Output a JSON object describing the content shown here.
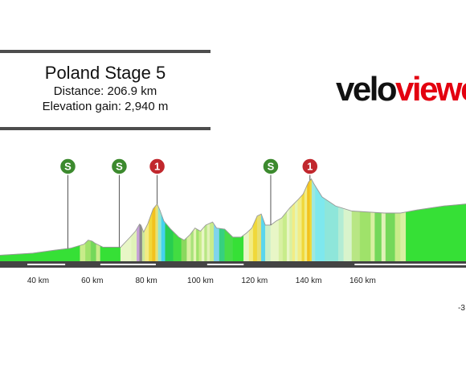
{
  "title": "Poland Stage 5",
  "distance": "Distance: 206.9 km",
  "elevation": "Elevation gain: 2,940 m",
  "brand": {
    "part1": "velo",
    "part2": "viewer"
  },
  "colors": {
    "brand_red": "#e3000f",
    "sprint_green": "#3c8a2e",
    "kom_red": "#c1272d",
    "baseline": "#444444"
  },
  "corner_text": "-3",
  "chart_data": {
    "type": "area",
    "title": "Poland Stage 5",
    "xlabel": "",
    "ylabel": "",
    "x_unit": "km",
    "xlim": [
      25.9,
      198.2
    ],
    "x_ticks": [
      {
        "value": 40,
        "label": "40 km"
      },
      {
        "value": 60,
        "label": "60 km"
      },
      {
        "value": 80,
        "label": "80 km"
      },
      {
        "value": 100,
        "label": "100 km"
      },
      {
        "value": 120,
        "label": "120 km"
      },
      {
        "value": 140,
        "label": "140 km"
      },
      {
        "value": 160,
        "label": "160 km"
      }
    ],
    "profile": [
      [
        25.9,
        6
      ],
      [
        38,
        8
      ],
      [
        46,
        11
      ],
      [
        52,
        13
      ],
      [
        57,
        17
      ],
      [
        58.5,
        21
      ],
      [
        60,
        20
      ],
      [
        61,
        18
      ],
      [
        64,
        14
      ],
      [
        70.5,
        14
      ],
      [
        74,
        24
      ],
      [
        76,
        30
      ],
      [
        77.5,
        37
      ],
      [
        78,
        36
      ],
      [
        79,
        29
      ],
      [
        80.5,
        37
      ],
      [
        82.5,
        52
      ],
      [
        84,
        57
      ],
      [
        85,
        51
      ],
      [
        86.5,
        40
      ],
      [
        89,
        32
      ],
      [
        92,
        24
      ],
      [
        94,
        21
      ],
      [
        96,
        26
      ],
      [
        98,
        33
      ],
      [
        100,
        30
      ],
      [
        102,
        36
      ],
      [
        104.5,
        39
      ],
      [
        106,
        33
      ],
      [
        109,
        32
      ],
      [
        112,
        24
      ],
      [
        115,
        24
      ],
      [
        117,
        28
      ],
      [
        119,
        33
      ],
      [
        121,
        45
      ],
      [
        122.5,
        47
      ],
      [
        124,
        36
      ],
      [
        126,
        36
      ],
      [
        128,
        40
      ],
      [
        130,
        43
      ],
      [
        133,
        53
      ],
      [
        136,
        61
      ],
      [
        138,
        67
      ],
      [
        140,
        79
      ],
      [
        141,
        82
      ],
      [
        142,
        77
      ],
      [
        145,
        64
      ],
      [
        150,
        55
      ],
      [
        156,
        50
      ],
      [
        162,
        49
      ],
      [
        168,
        48
      ],
      [
        174,
        48
      ],
      [
        180,
        51
      ],
      [
        190,
        55
      ],
      [
        198.2,
        57
      ]
    ],
    "segments": [
      {
        "from": 25.9,
        "to": 55.5,
        "color": "#36e036"
      },
      {
        "from": 55.5,
        "to": 57.5,
        "color": "#c8ec8a"
      },
      {
        "from": 57.5,
        "to": 59.5,
        "color": "#9fe26a"
      },
      {
        "from": 59.5,
        "to": 61.5,
        "color": "#74d85a"
      },
      {
        "from": 61.5,
        "to": 63,
        "color": "#c8ec8a"
      },
      {
        "from": 63,
        "to": 70.5,
        "color": "#36e036"
      },
      {
        "from": 70.5,
        "to": 74.5,
        "color": "#e8f6c6"
      },
      {
        "from": 74.5,
        "to": 76.5,
        "color": "#e0f2b8"
      },
      {
        "from": 76.5,
        "to": 77.5,
        "color": "#c6a0d8"
      },
      {
        "from": 77.5,
        "to": 78.5,
        "color": "#8a8a8a"
      },
      {
        "from": 78.5,
        "to": 79.5,
        "color": "#cde89a"
      },
      {
        "from": 79.5,
        "to": 81,
        "color": "#f2ec84"
      },
      {
        "from": 81,
        "to": 82.2,
        "color": "#f0d83a"
      },
      {
        "from": 82.2,
        "to": 83.4,
        "color": "#f3c21e"
      },
      {
        "from": 83.4,
        "to": 84.4,
        "color": "#e8e070"
      },
      {
        "from": 84.4,
        "to": 85.6,
        "color": "#92e6d2"
      },
      {
        "from": 85.6,
        "to": 87,
        "color": "#44d2ee"
      },
      {
        "from": 87,
        "to": 90,
        "color": "#28cd50"
      },
      {
        "from": 90,
        "to": 93,
        "color": "#42dc42"
      },
      {
        "from": 93,
        "to": 95,
        "color": "#8ad85e"
      },
      {
        "from": 95,
        "to": 96.5,
        "color": "#d8f0a2"
      },
      {
        "from": 96.5,
        "to": 97.5,
        "color": "#a8e27a"
      },
      {
        "from": 97.5,
        "to": 98.5,
        "color": "#e4f4b4"
      },
      {
        "from": 98.5,
        "to": 99.5,
        "color": "#9fe26a"
      },
      {
        "from": 99.5,
        "to": 100.5,
        "color": "#c8ec8a"
      },
      {
        "from": 100.5,
        "to": 101.5,
        "color": "#e8f6c6"
      },
      {
        "from": 101.5,
        "to": 102.5,
        "color": "#b8e684"
      },
      {
        "from": 102.5,
        "to": 103.5,
        "color": "#e0f2b8"
      },
      {
        "from": 103.5,
        "to": 105,
        "color": "#c8ec8a"
      },
      {
        "from": 105,
        "to": 107,
        "color": "#7ed4ec"
      },
      {
        "from": 107,
        "to": 109,
        "color": "#36d080"
      },
      {
        "from": 109,
        "to": 112,
        "color": "#48dc48"
      },
      {
        "from": 112,
        "to": 116,
        "color": "#36e036"
      },
      {
        "from": 116,
        "to": 118,
        "color": "#e8f6c6"
      },
      {
        "from": 118,
        "to": 119.5,
        "color": "#f2ec84"
      },
      {
        "from": 119.5,
        "to": 121,
        "color": "#f0d83a"
      },
      {
        "from": 121,
        "to": 122.5,
        "color": "#e8e070"
      },
      {
        "from": 122.5,
        "to": 124,
        "color": "#5ad6ee"
      },
      {
        "from": 124,
        "to": 126,
        "color": "#ccefc8"
      },
      {
        "from": 126,
        "to": 129,
        "color": "#e8f6c6"
      },
      {
        "from": 129,
        "to": 130.5,
        "color": "#d8f0a2"
      },
      {
        "from": 130.5,
        "to": 132,
        "color": "#c8ec8a"
      },
      {
        "from": 132,
        "to": 133,
        "color": "#e8f6c6"
      },
      {
        "from": 133,
        "to": 134,
        "color": "#d8f0a2"
      },
      {
        "from": 134,
        "to": 135,
        "color": "#f2ec84"
      },
      {
        "from": 135,
        "to": 136,
        "color": "#e4f4b4"
      },
      {
        "from": 136,
        "to": 137.5,
        "color": "#f2ec84"
      },
      {
        "from": 137.5,
        "to": 138.5,
        "color": "#f0d83a"
      },
      {
        "from": 138.5,
        "to": 139.5,
        "color": "#f2ec84"
      },
      {
        "from": 139.5,
        "to": 140.5,
        "color": "#f3c21e"
      },
      {
        "from": 140.5,
        "to": 141.2,
        "color": "#f0d83a"
      },
      {
        "from": 141.2,
        "to": 142.5,
        "color": "#9ee8e0"
      },
      {
        "from": 142.5,
        "to": 146,
        "color": "#7ee8ee"
      },
      {
        "from": 146,
        "to": 151,
        "color": "#8ee6da"
      },
      {
        "from": 151,
        "to": 153,
        "color": "#b2ecd4"
      },
      {
        "from": 153,
        "to": 156,
        "color": "#d8f4cc"
      },
      {
        "from": 156,
        "to": 159,
        "color": "#b8e684"
      },
      {
        "from": 159,
        "to": 163,
        "color": "#9fe26a"
      },
      {
        "from": 163,
        "to": 164.5,
        "color": "#d8f0a2"
      },
      {
        "from": 164.5,
        "to": 167,
        "color": "#74d85a"
      },
      {
        "from": 167,
        "to": 168.5,
        "color": "#e0f2b8"
      },
      {
        "from": 168.5,
        "to": 172,
        "color": "#74d85a"
      },
      {
        "from": 172,
        "to": 174,
        "color": "#c8ec8a"
      },
      {
        "from": 174,
        "to": 176,
        "color": "#d8f0a2"
      },
      {
        "from": 176,
        "to": 198.2,
        "color": "#36e036"
      }
    ],
    "markers": [
      {
        "type": "sprint",
        "label": "S",
        "km": 51,
        "color": "#3c8a2e"
      },
      {
        "type": "sprint",
        "label": "S",
        "km": 70,
        "color": "#3c8a2e"
      },
      {
        "type": "kom",
        "label": "1",
        "km": 84,
        "color": "#c1272d"
      },
      {
        "type": "sprint",
        "label": "S",
        "km": 126,
        "color": "#3c8a2e"
      },
      {
        "type": "kom",
        "label": "1",
        "km": 140.5,
        "color": "#c1272d"
      }
    ],
    "road_dashes": [
      [
        36,
        50
      ],
      [
        63,
        83.5
      ],
      [
        102.5,
        116
      ],
      [
        157,
        198.2
      ]
    ],
    "grid": false,
    "legend": "none"
  }
}
